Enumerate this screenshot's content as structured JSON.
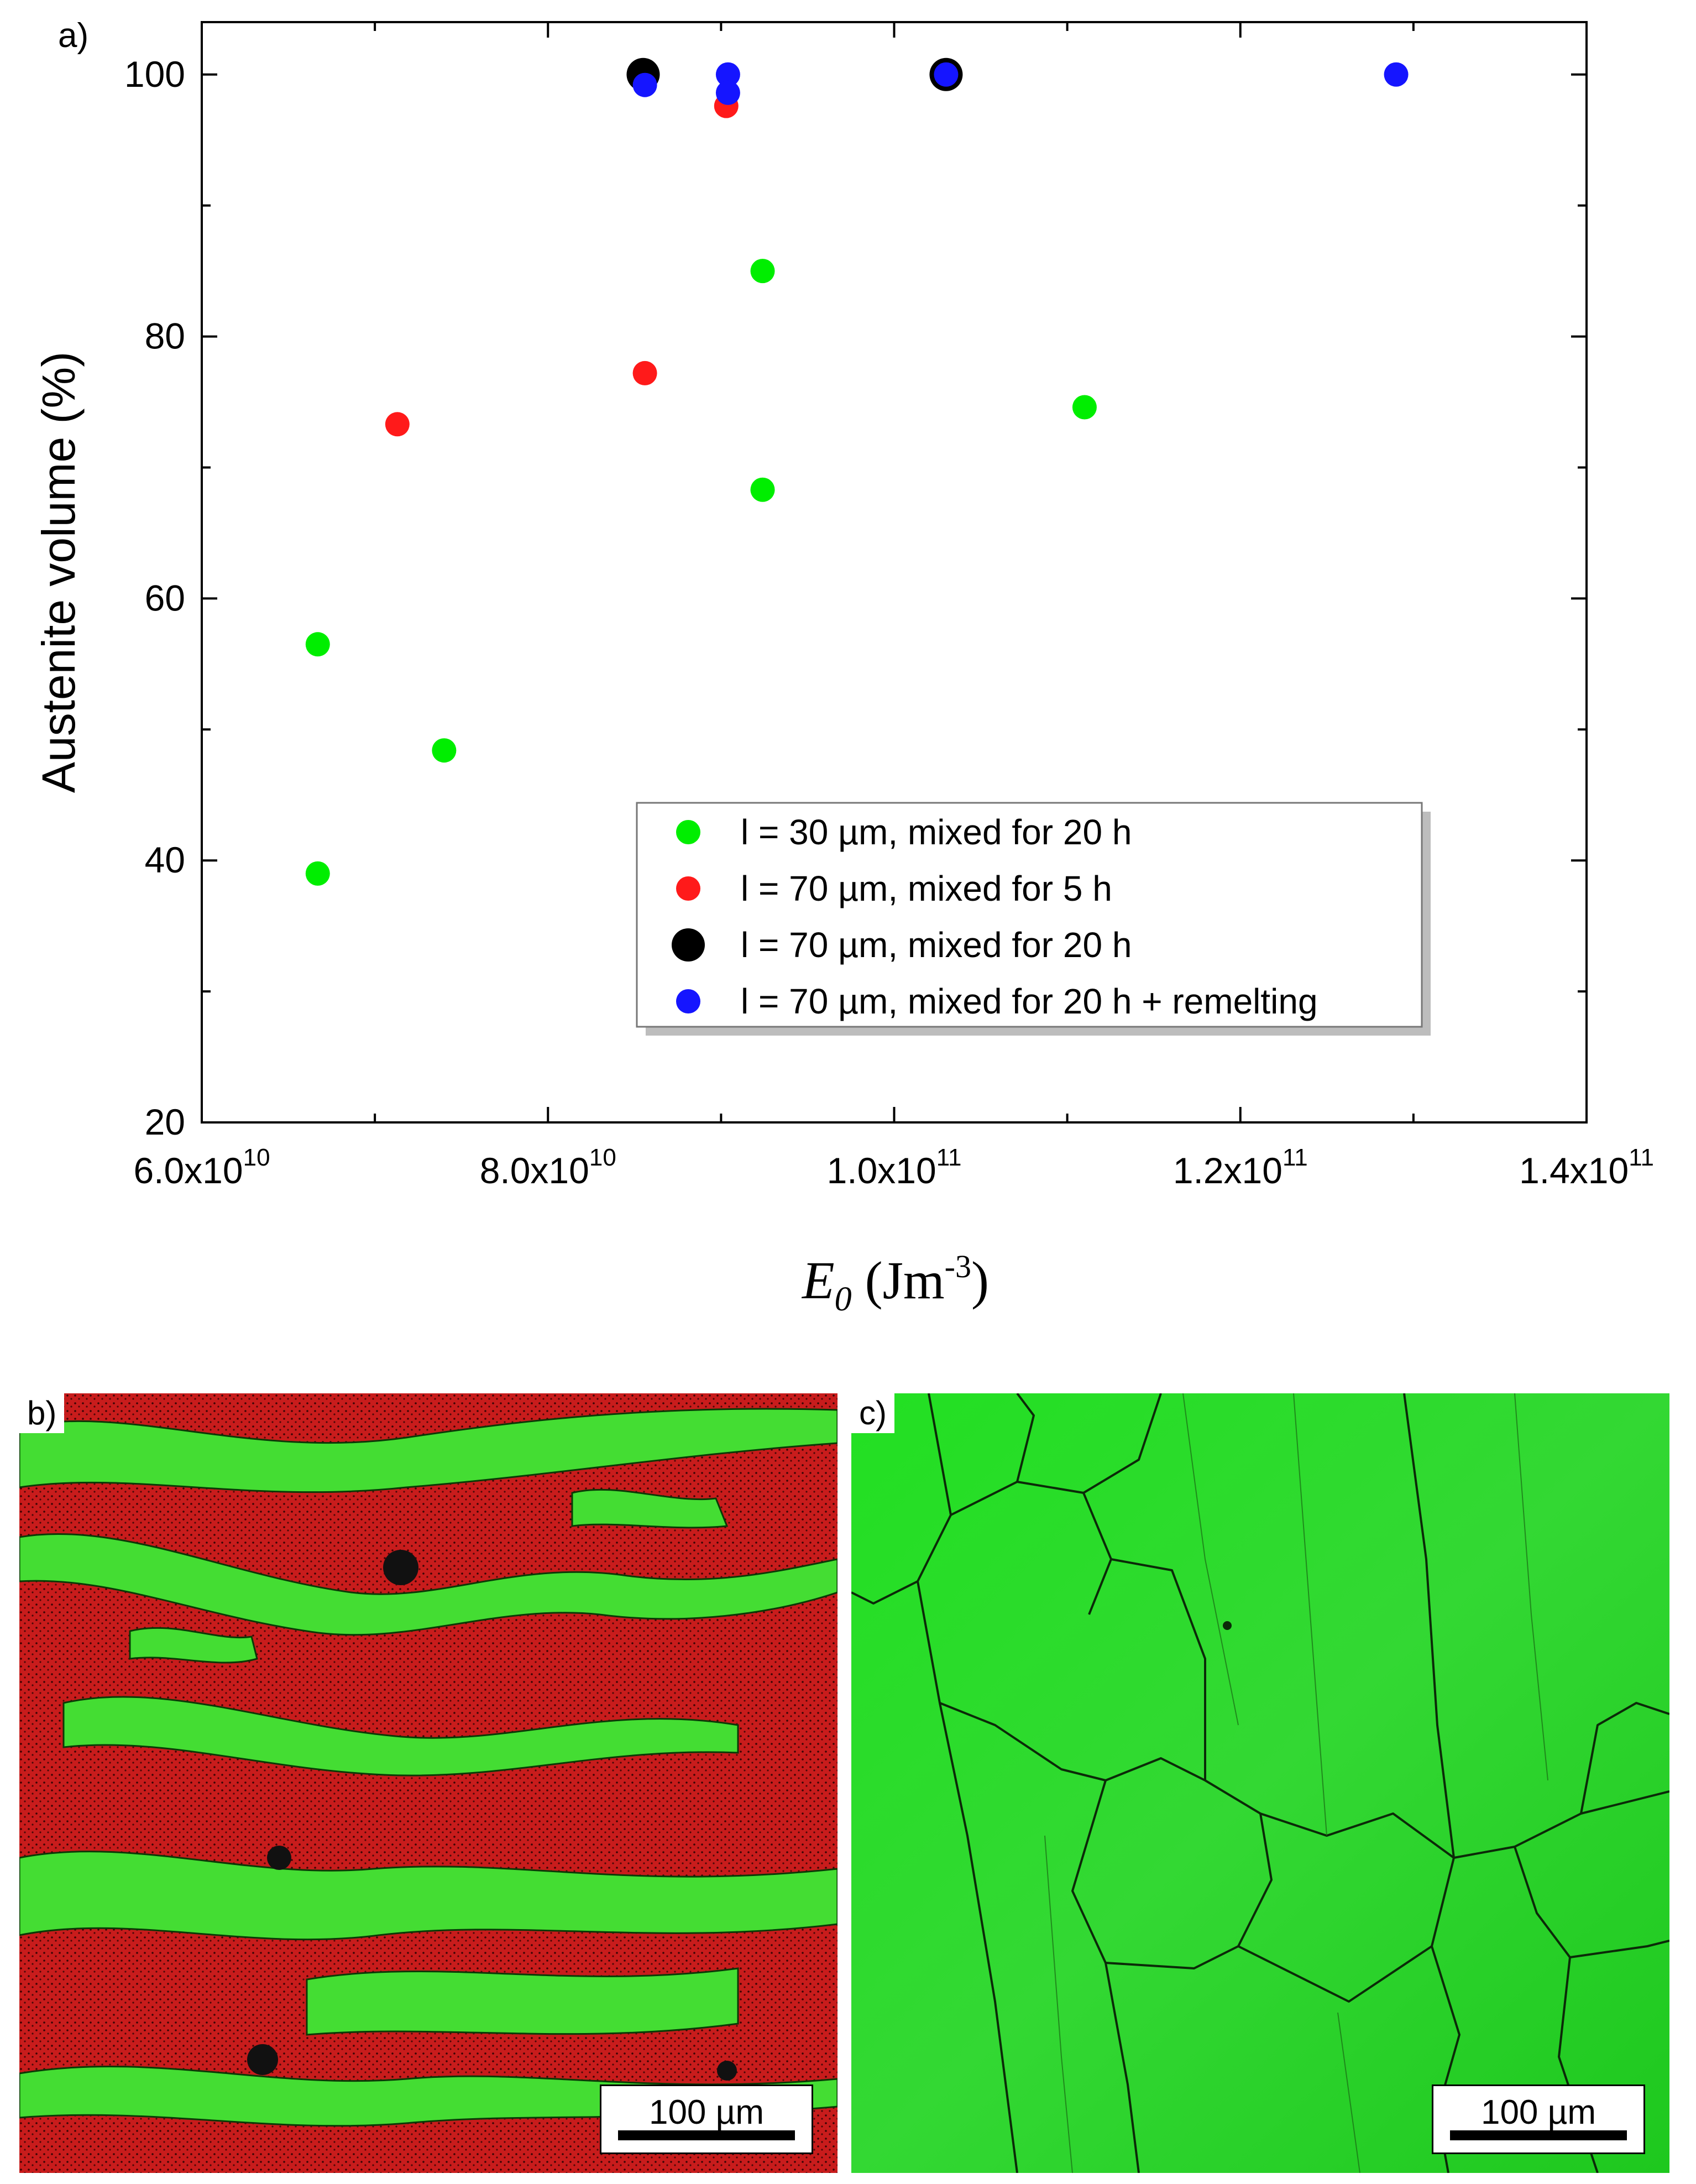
{
  "panels": {
    "a": {
      "label": "a)"
    },
    "b": {
      "label": "b)",
      "scalebar": "100 µm"
    },
    "c": {
      "label": "c)",
      "scalebar": "100 µm"
    }
  },
  "chart_data": {
    "type": "scatter",
    "title": "",
    "xlabel": "E0 (Jm-3)",
    "ylabel": "Austenite volume (%)",
    "xlim": [
      60000000000,
      140000000000
    ],
    "ylim": [
      20,
      104
    ],
    "x_ticks": [
      {
        "value": 60000000000,
        "label": "6.0x10",
        "exp": "10"
      },
      {
        "value": 80000000000,
        "label": "8.0x10",
        "exp": "10"
      },
      {
        "value": 100000000000,
        "label": "1.0x10",
        "exp": "11"
      },
      {
        "value": 120000000000,
        "label": "1.2x10",
        "exp": "11"
      },
      {
        "value": 140000000000,
        "label": "1.4x10",
        "exp": "11"
      }
    ],
    "y_ticks": [
      20,
      40,
      60,
      80,
      100
    ],
    "legend": {
      "placement": "bottom-right"
    },
    "grid": false,
    "series": [
      {
        "name": "l = 30 µm, mixed for 20 h",
        "color": "#00ee00",
        "marker_size": "small",
        "points": [
          [
            66700000000,
            56.5
          ],
          [
            66700000000,
            39.0
          ],
          [
            74000000000,
            48.4
          ],
          [
            92400000000,
            85.0
          ],
          [
            92400000000,
            68.3
          ],
          [
            111000000000,
            74.6
          ]
        ]
      },
      {
        "name": "l = 70 µm, mixed for 5 h",
        "color": "#ff1a1a",
        "marker_size": "small",
        "points": [
          [
            71300000000,
            73.3
          ],
          [
            85600000000,
            77.2
          ],
          [
            90300000000,
            97.6
          ]
        ]
      },
      {
        "name": "l = 70 µm, mixed for 20 h",
        "color": "#000000",
        "marker_size": "large",
        "points": [
          [
            85500000000,
            100.0
          ],
          [
            103000000000,
            100.0
          ]
        ]
      },
      {
        "name": "l = 70 µm, mixed for 20 h + remelting",
        "color": "#1515ff",
        "marker_size": "small",
        "points": [
          [
            85600000000,
            99.2
          ],
          [
            90400000000,
            100.0
          ],
          [
            90400000000,
            98.6
          ],
          [
            103000000000,
            100.0
          ],
          [
            129000000000,
            100.0
          ]
        ]
      }
    ]
  }
}
